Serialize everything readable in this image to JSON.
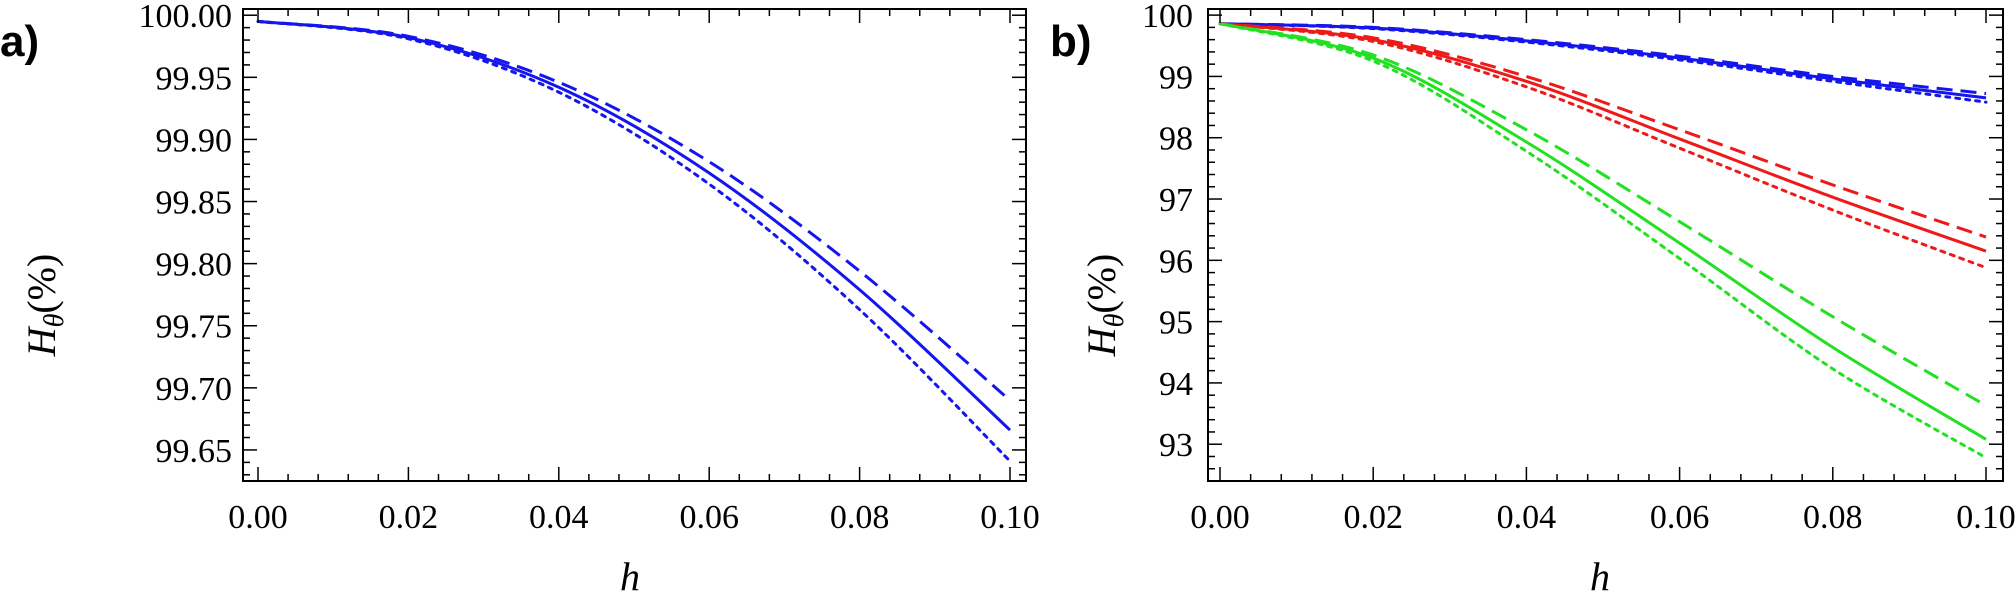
{
  "chart_data": [
    {
      "type": "line",
      "panel_label": "a)",
      "xlabel": "h",
      "ylabel_main": "H",
      "ylabel_sub": "θ",
      "ylabel_suffix": "(%)",
      "xlim": [
        0,
        0.1
      ],
      "ylim": [
        99.625,
        100.005
      ],
      "xticks": [
        0,
        0.02,
        0.04,
        0.06,
        0.08,
        0.1
      ],
      "xtick_labels": [
        "0.00",
        "0.02",
        "0.04",
        "0.06",
        "0.08",
        "0.10"
      ],
      "yticks": [
        99.65,
        99.7,
        99.75,
        99.8,
        99.85,
        99.9,
        99.95,
        100.0
      ],
      "ytick_labels": [
        "99.65",
        "99.70",
        "99.75",
        "99.80",
        "99.85",
        "99.90",
        "99.95",
        "100.00"
      ],
      "series": [
        {
          "color": "#1515ee",
          "style": "dashed",
          "x": [
            0,
            0.02,
            0.04,
            0.06,
            0.08,
            0.1
          ],
          "y": [
            99.995,
            99.983,
            99.946,
            99.882,
            99.794,
            99.69
          ]
        },
        {
          "color": "#1515ee",
          "style": "solid",
          "x": [
            0,
            0.02,
            0.04,
            0.06,
            0.08,
            0.1
          ],
          "y": [
            99.995,
            99.982,
            99.942,
            99.873,
            99.779,
            99.666
          ]
        },
        {
          "color": "#1515ee",
          "style": "dotted",
          "x": [
            0,
            0.02,
            0.04,
            0.06,
            0.08,
            0.1
          ],
          "y": [
            99.995,
            99.981,
            99.938,
            99.864,
            99.763,
            99.641
          ]
        }
      ]
    },
    {
      "type": "line",
      "panel_label": "b)",
      "xlabel": "h",
      "ylabel_main": "H",
      "ylabel_sub": "θ",
      "ylabel_suffix": "(%)",
      "xlim": [
        0,
        0.1
      ],
      "ylim": [
        92.4,
        100.1
      ],
      "xticks": [
        0,
        0.02,
        0.04,
        0.06,
        0.08,
        0.1
      ],
      "xtick_labels": [
        "0.00",
        "0.02",
        "0.04",
        "0.06",
        "0.08",
        "0.10"
      ],
      "yticks": [
        93,
        94,
        95,
        96,
        97,
        98,
        99,
        100
      ],
      "ytick_labels": [
        "93",
        "94",
        "95",
        "96",
        "97",
        "98",
        "99",
        "100"
      ],
      "series": [
        {
          "color": "#1515ee",
          "style": "dashed",
          "x": [
            0,
            0.02,
            0.04,
            0.06,
            0.08,
            0.1
          ],
          "y": [
            99.86,
            99.8,
            99.6,
            99.33,
            99.0,
            98.72
          ]
        },
        {
          "color": "#1515ee",
          "style": "solid",
          "x": [
            0,
            0.02,
            0.04,
            0.06,
            0.08,
            0.1
          ],
          "y": [
            99.86,
            99.79,
            99.58,
            99.3,
            98.96,
            98.65
          ]
        },
        {
          "color": "#1515ee",
          "style": "dotted",
          "x": [
            0,
            0.02,
            0.04,
            0.06,
            0.08,
            0.1
          ],
          "y": [
            99.86,
            99.78,
            99.56,
            99.27,
            98.92,
            98.58
          ]
        },
        {
          "color": "#ee1a1a",
          "style": "dashed",
          "x": [
            0,
            0.02,
            0.04,
            0.06,
            0.08,
            0.1
          ],
          "y": [
            99.86,
            99.63,
            99.0,
            98.13,
            97.23,
            96.38
          ]
        },
        {
          "color": "#ee1a1a",
          "style": "solid",
          "x": [
            0,
            0.02,
            0.04,
            0.06,
            0.08,
            0.1
          ],
          "y": [
            99.86,
            99.6,
            98.92,
            97.98,
            97.03,
            96.15
          ]
        },
        {
          "color": "#ee1a1a",
          "style": "dotted",
          "x": [
            0,
            0.02,
            0.04,
            0.06,
            0.08,
            0.1
          ],
          "y": [
            99.86,
            99.57,
            98.83,
            97.83,
            96.82,
            95.88
          ]
        },
        {
          "color": "#22e022",
          "style": "dashed",
          "x": [
            0,
            0.02,
            0.04,
            0.06,
            0.08,
            0.1
          ],
          "y": [
            99.86,
            99.35,
            98.13,
            96.63,
            95.08,
            93.63
          ]
        },
        {
          "color": "#22e022",
          "style": "solid",
          "x": [
            0,
            0.02,
            0.04,
            0.06,
            0.08,
            0.1
          ],
          "y": [
            99.86,
            99.3,
            97.93,
            96.28,
            94.58,
            93.08
          ]
        },
        {
          "color": "#22e022",
          "style": "dotted",
          "x": [
            0,
            0.02,
            0.04,
            0.06,
            0.08,
            0.1
          ],
          "y": [
            99.86,
            99.25,
            97.78,
            96.03,
            94.23,
            92.78
          ]
        }
      ]
    }
  ]
}
